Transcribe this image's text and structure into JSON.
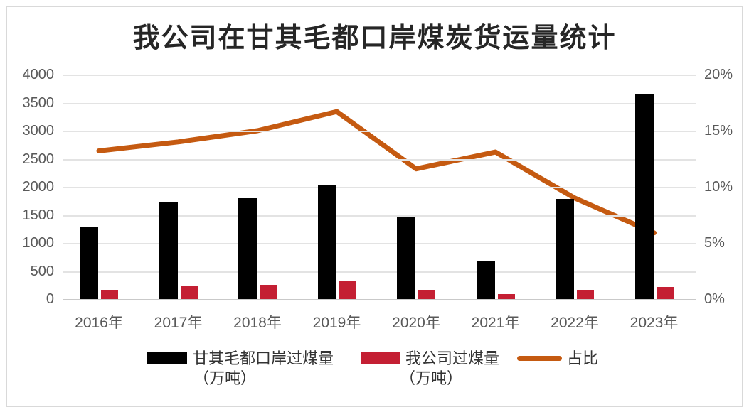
{
  "chart_data": {
    "type": "bar+line combo",
    "title": "我公司在甘其毛都口岸煤炭货运量统计",
    "categories": [
      "2016年",
      "2017年",
      "2018年",
      "2019年",
      "2020年",
      "2021年",
      "2022年",
      "2023年"
    ],
    "series": [
      {
        "name": "甘其毛都口岸过煤量（万吨）",
        "type": "bar",
        "axis": "left",
        "color": "#000000",
        "values": [
          1280,
          1720,
          1800,
          2030,
          1460,
          675,
          1790,
          3650
        ]
      },
      {
        "name": "我公司过煤量（万吨）",
        "type": "bar",
        "axis": "left",
        "color": "#c41f33",
        "values": [
          165,
          240,
          255,
          335,
          160,
          88,
          160,
          215
        ]
      },
      {
        "name": "占比",
        "type": "line",
        "axis": "right",
        "color": "#c55a11",
        "values_percent": [
          13.2,
          14.0,
          15.0,
          16.7,
          11.6,
          13.1,
          9.0,
          5.9
        ]
      }
    ],
    "left_axis": {
      "min": 0,
      "max": 4000,
      "step": 500,
      "tick_labels": [
        "4000",
        "3500",
        "3000",
        "2500",
        "2000",
        "1500",
        "1000",
        "500",
        "0"
      ]
    },
    "right_axis": {
      "min_percent": 0,
      "max_percent": 20,
      "label_step_percent": 5,
      "tick_labels": [
        "20%",
        "15%",
        "10%",
        "5%",
        "0%"
      ]
    },
    "grid": true,
    "legend": {
      "position": "bottom",
      "items": [
        {
          "label_line1": "甘其毛都口岸过煤量",
          "label_line2": "（万吨）",
          "swatch": "black-bar-swatch",
          "color": "#000000"
        },
        {
          "label_line1": "我公司过煤量",
          "label_line2": "（万吨）",
          "swatch": "red-bar-swatch",
          "color": "#c41f33"
        },
        {
          "label_line1": "占比",
          "label_line2": "",
          "swatch": "orange-line-swatch",
          "color": "#c55a11"
        }
      ]
    },
    "colors": {
      "gridline": "#e3e3e3",
      "axis_labels": "#595959",
      "title": "#262626",
      "frame_border": "#d9d9d9"
    }
  }
}
